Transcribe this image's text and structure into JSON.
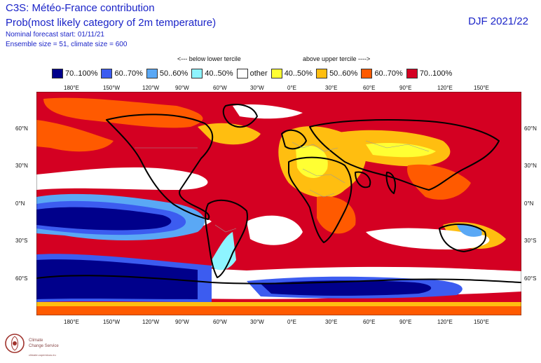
{
  "header": {
    "title_line1": "C3S: Météo-France contribution",
    "title_line2": "Prob(most likely category of 2m temperature)",
    "forecast_start": "Nominal forecast start: 01/11/21",
    "ensemble": "Ensemble size = 51, climate size = 600",
    "season": "DJF 2021/22"
  },
  "legend": {
    "below_label": "<--- below lower tercile",
    "above_label": "above upper tercile ---->",
    "items": [
      {
        "label": "70..100%",
        "color": "#00008b"
      },
      {
        "label": "60..70%",
        "color": "#3c5cf0"
      },
      {
        "label": "50..60%",
        "color": "#5aa8f5"
      },
      {
        "label": "40..50%",
        "color": "#8ef4ff"
      },
      {
        "label": "other",
        "color": "#ffffff"
      },
      {
        "label": "40..50%",
        "color": "#ffff33"
      },
      {
        "label": "50..60%",
        "color": "#ffbe10"
      },
      {
        "label": "60..70%",
        "color": "#ff5a00"
      },
      {
        "label": "70..100%",
        "color": "#d40022"
      }
    ]
  },
  "axes": {
    "lon_ticks": [
      "180°E",
      "150°W",
      "120°W",
      "90°W",
      "60°W",
      "30°W",
      "0°E",
      "30°E",
      "60°E",
      "90°E",
      "120°E",
      "150°E"
    ],
    "lat_ticks": [
      "60°N",
      "30°N",
      "0°N",
      "30°S",
      "60°S"
    ]
  },
  "logo": {
    "name": "Climate Change Service"
  }
}
